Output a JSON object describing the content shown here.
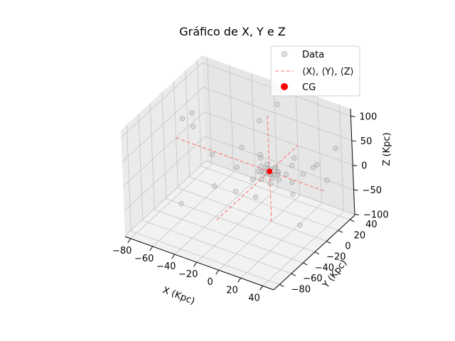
{
  "chart_data": {
    "type": "scatter3d",
    "title": "Gráfico de X, Y e Z",
    "xlabel": "X (Kpc)",
    "ylabel": "Y (Kpc)",
    "zlabel": "Z (Kpc)",
    "x_ticks": [
      "−80",
      "−60",
      "−40",
      "−20",
      "0",
      "20",
      "40"
    ],
    "y_ticks": [
      "−80",
      "−60",
      "−40",
      "−20",
      "0",
      "20",
      "40"
    ],
    "z_ticks": [
      "−100",
      "−50",
      "0",
      "50",
      "100"
    ],
    "xlim": [
      -85,
      50
    ],
    "ylim": [
      -90,
      48
    ],
    "zlim": [
      -102,
      115
    ],
    "grid": true,
    "legend_position": "top-right",
    "legend": [
      {
        "label": "Data",
        "marker": "circle",
        "color": "#c8c8c8"
      },
      {
        "label": "⟨X⟩, ⟨Y⟩, ⟨Z⟩",
        "marker": "dashed-line",
        "color": "#ff6a6a"
      },
      {
        "label": "CG",
        "marker": "circle",
        "color": "#ff0000"
      }
    ],
    "series": [
      {
        "name": "Data",
        "points": [
          [
            -2,
            1,
            2
          ],
          [
            3,
            -2,
            -1
          ],
          [
            -4,
            3,
            1
          ],
          [
            5,
            4,
            -3
          ],
          [
            1,
            -5,
            2
          ],
          [
            -6,
            -3,
            -2
          ],
          [
            7,
            2,
            3
          ],
          [
            -3,
            6,
            -4
          ],
          [
            2,
            7,
            1
          ],
          [
            -8,
            1,
            3
          ],
          [
            6,
            -6,
            -2
          ],
          [
            -1,
            -7,
            4
          ],
          [
            4,
            1,
            -5
          ],
          [
            -5,
            5,
            5
          ],
          [
            8,
            -1,
            1
          ],
          [
            0,
            0,
            -6
          ],
          [
            -7,
            -6,
            1
          ],
          [
            3,
            3,
            6
          ],
          [
            10,
            9,
            -8
          ],
          [
            -12,
            8,
            9
          ],
          [
            14,
            -10,
            5
          ],
          [
            -9,
            -12,
            -10
          ],
          [
            18,
            4,
            -12
          ],
          [
            -16,
            14,
            6
          ],
          [
            22,
            16,
            -5
          ],
          [
            -20,
            -18,
            12
          ],
          [
            12,
            20,
            15
          ],
          [
            25,
            -8,
            -18
          ],
          [
            -28,
            6,
            20
          ],
          [
            5,
            28,
            -15
          ],
          [
            30,
            25,
            10
          ],
          [
            -15,
            -30,
            -20
          ],
          [
            35,
            10,
            25
          ],
          [
            -70,
            -15,
            68
          ],
          [
            -75,
            10,
            48
          ],
          [
            -55,
            5,
            -15
          ],
          [
            -30,
            40,
            35
          ],
          [
            30,
            40,
            -38
          ],
          [
            -40,
            -20,
            -40
          ],
          [
            15,
            -40,
            40
          ],
          [
            45,
            30,
            50
          ],
          [
            -80,
            20,
            5
          ],
          [
            -10,
            35,
            90
          ],
          [
            40,
            -25,
            -50
          ],
          [
            -25,
            45,
            -95
          ],
          [
            20,
            -60,
            30
          ],
          [
            -60,
            -40,
            -70
          ]
        ]
      },
      {
        "name": "⟨X⟩, ⟨Y⟩, ⟨Z⟩",
        "mean": [
          0,
          0,
          0
        ]
      },
      {
        "name": "CG",
        "point": [
          0,
          0,
          0
        ]
      }
    ]
  }
}
